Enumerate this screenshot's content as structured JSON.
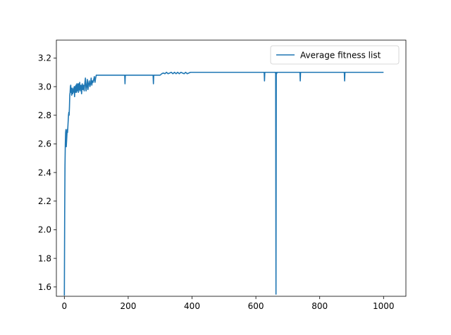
{
  "chart_data": {
    "type": "line",
    "title": "",
    "xlabel": "",
    "ylabel": "",
    "xlim": [
      -25,
      1070
    ],
    "ylim": [
      1.535,
      3.325
    ],
    "xticks": [
      0,
      200,
      400,
      600,
      800,
      1000
    ],
    "yticks": [
      1.6,
      1.8,
      2.0,
      2.2,
      2.4,
      2.6,
      2.8,
      3.0,
      3.2
    ],
    "grid": false,
    "legend": {
      "placement": "top-right",
      "entries": [
        "Average fitness list"
      ]
    },
    "series": [
      {
        "name": "Average fitness list",
        "color": "#1f77b4",
        "x": [
          0,
          1,
          2,
          3,
          4,
          5,
          6,
          7,
          8,
          9,
          10,
          11,
          12,
          13,
          14,
          15,
          16,
          17,
          18,
          19,
          20,
          21,
          22,
          23,
          24,
          25,
          26,
          27,
          28,
          29,
          30,
          31,
          32,
          33,
          34,
          35,
          36,
          37,
          38,
          39,
          40,
          41,
          42,
          43,
          44,
          45,
          46,
          47,
          48,
          49,
          50,
          52,
          54,
          56,
          58,
          60,
          62,
          64,
          66,
          68,
          70,
          72,
          74,
          76,
          78,
          80,
          82,
          84,
          86,
          88,
          90,
          92,
          94,
          96,
          98,
          100,
          102,
          105,
          110,
          150,
          189,
          190,
          191,
          200,
          230,
          278,
          279,
          280,
          300,
          305,
          310,
          315,
          320,
          325,
          330,
          335,
          340,
          345,
          350,
          355,
          360,
          365,
          370,
          375,
          380,
          385,
          390,
          395,
          400,
          500,
          626,
          627,
          628,
          629,
          660,
          661,
          662,
          663,
          664,
          665,
          666,
          700,
          738,
          739,
          740,
          741,
          800,
          877,
          878,
          879,
          1000
        ],
        "y": [
          1.54,
          2.1,
          2.45,
          2.6,
          2.68,
          2.7,
          2.58,
          2.62,
          2.66,
          2.7,
          2.68,
          2.72,
          2.76,
          2.8,
          2.82,
          2.8,
          2.86,
          2.94,
          2.96,
          3.0,
          3.01,
          2.96,
          2.98,
          2.94,
          2.99,
          2.97,
          2.95,
          2.98,
          2.96,
          2.99,
          2.97,
          3.0,
          2.93,
          2.98,
          3.0,
          2.96,
          3.01,
          2.99,
          2.96,
          3.02,
          2.97,
          3.0,
          2.99,
          3.02,
          2.96,
          3.0,
          3.02,
          2.98,
          3.03,
          2.97,
          3.0,
          3.01,
          2.95,
          3.02,
          2.98,
          3.01,
          2.97,
          3.02,
          3.06,
          2.97,
          3.0,
          3.05,
          2.98,
          3.02,
          3.04,
          3.0,
          3.02,
          3.06,
          3.01,
          3.04,
          3.03,
          3.05,
          3.07,
          3.03,
          3.06,
          3.08,
          3.08,
          3.08,
          3.08,
          3.08,
          3.08,
          3.02,
          3.08,
          3.08,
          3.08,
          3.08,
          3.02,
          3.08,
          3.08,
          3.09,
          3.095,
          3.09,
          3.1,
          3.09,
          3.095,
          3.1,
          3.09,
          3.1,
          3.09,
          3.1,
          3.09,
          3.1,
          3.095,
          3.09,
          3.1,
          3.09,
          3.095,
          3.1,
          3.1,
          3.1,
          3.1,
          3.04,
          3.1,
          3.1,
          3.1,
          3.1,
          3.09,
          1.55,
          3.1,
          3.09,
          3.1,
          3.1,
          3.1,
          3.04,
          3.1,
          3.1,
          3.1,
          3.1,
          3.04,
          3.1,
          3.1
        ]
      }
    ]
  }
}
